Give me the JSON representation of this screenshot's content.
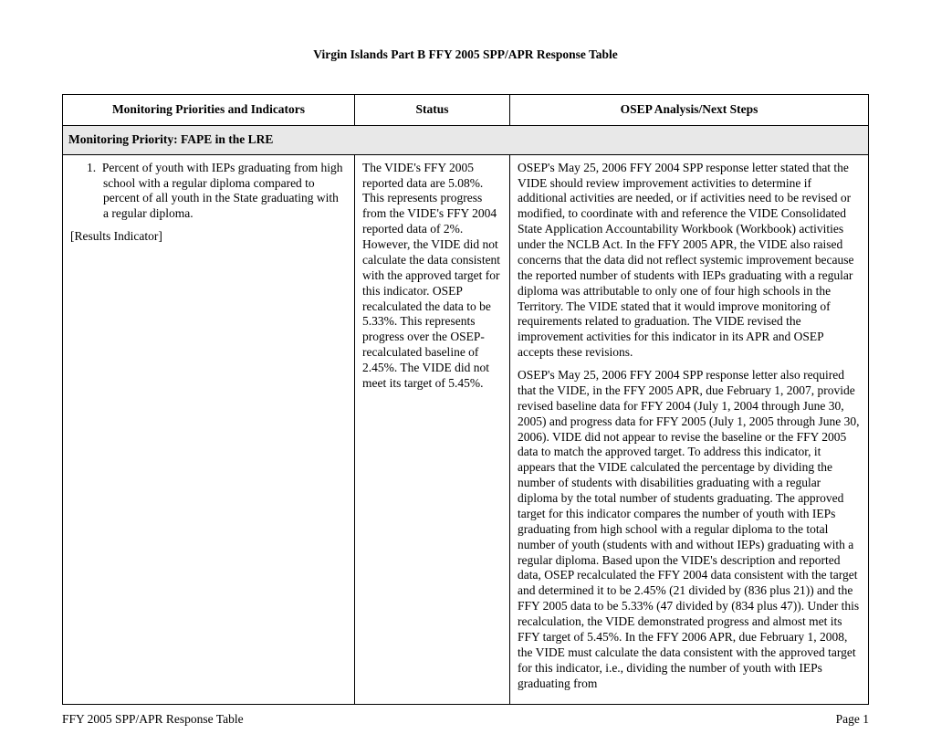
{
  "title": "Virgin Islands Part B FFY 2005 SPP/APR Response Table",
  "headers": {
    "col1": "Monitoring Priorities and Indicators",
    "col2": "Status",
    "col3": "OSEP Analysis/Next Steps"
  },
  "priority_row": "Monitoring Priority:  FAPE in the LRE",
  "indicator": {
    "number": "1.",
    "text": "Percent of youth with IEPs graduating from high school with a regular diploma compared to percent of all youth in the State graduating with a regular diploma.",
    "result_label": "[Results Indicator]"
  },
  "status": "The VIDE's FFY 2005 reported data are 5.08%.  This represents progress from the VIDE's FFY 2004 reported data of 2%.  However, the VIDE did not calculate the data consistent with the approved target for this indicator.  OSEP recalculated the data to be 5.33%.  This represents progress over the OSEP-recalculated baseline of 2.45%.  The VIDE did not meet its target of 5.45%.",
  "osep_p1": "OSEP's May 25, 2006 FFY 2004 SPP response letter stated that the VIDE should review improvement activities to determine if additional activities are needed, or if activities need to be revised or modified, to coordinate with and reference the VIDE Consolidated State Application Accountability Workbook (Workbook) activities under the NCLB Act.  In the FFY 2005 APR, the VIDE also raised concerns that the data did not reflect systemic improvement because the reported number of students with IEPs graduating with a regular diploma was attributable to only one of four high schools in the Territory.  The VIDE stated that it would improve monitoring of requirements related to graduation.  The VIDE revised the improvement activities for this indicator in its APR and OSEP accepts these revisions.",
  "osep_p2": "OSEP's May 25, 2006 FFY 2004 SPP response letter also required that the VIDE, in the FFY 2005 APR, due February 1, 2007, provide revised baseline data for FFY 2004 (July 1, 2004 through June 30, 2005) and progress data for FFY 2005 (July 1, 2005 through June 30, 2006).    VIDE did not appear to revise the baseline or the FFY 2005 data to match the approved target.  To address this indicator, it appears that the VIDE calculated the percentage by dividing the number of students with disabilities graduating with a regular diploma by the total number of students graduating.  The approved target for this indicator compares the number of youth with IEPs graduating from high school with a regular diploma to the total number of youth  (students with and without IEPs) graduating with a regular diploma.  Based upon the VIDE's description and reported data, OSEP recalculated the FFY 2004 data consistent with the target and determined it to be 2.45% (21 divided by (836 plus 21)) and the FFY 2005 data to be 5.33% (47 divided by (834 plus 47)).  Under this recalculation, the VIDE demonstrated progress and almost met its FFY target of 5.45%.  In the FFY 2006 APR, due February 1, 2008, the VIDE must calculate the data consistent with the approved target for this indicator, i.e., dividing the number of youth with IEPs graduating from",
  "footer_left": "FFY 2005 SPP/APR Response Table",
  "footer_right": "Page 1"
}
